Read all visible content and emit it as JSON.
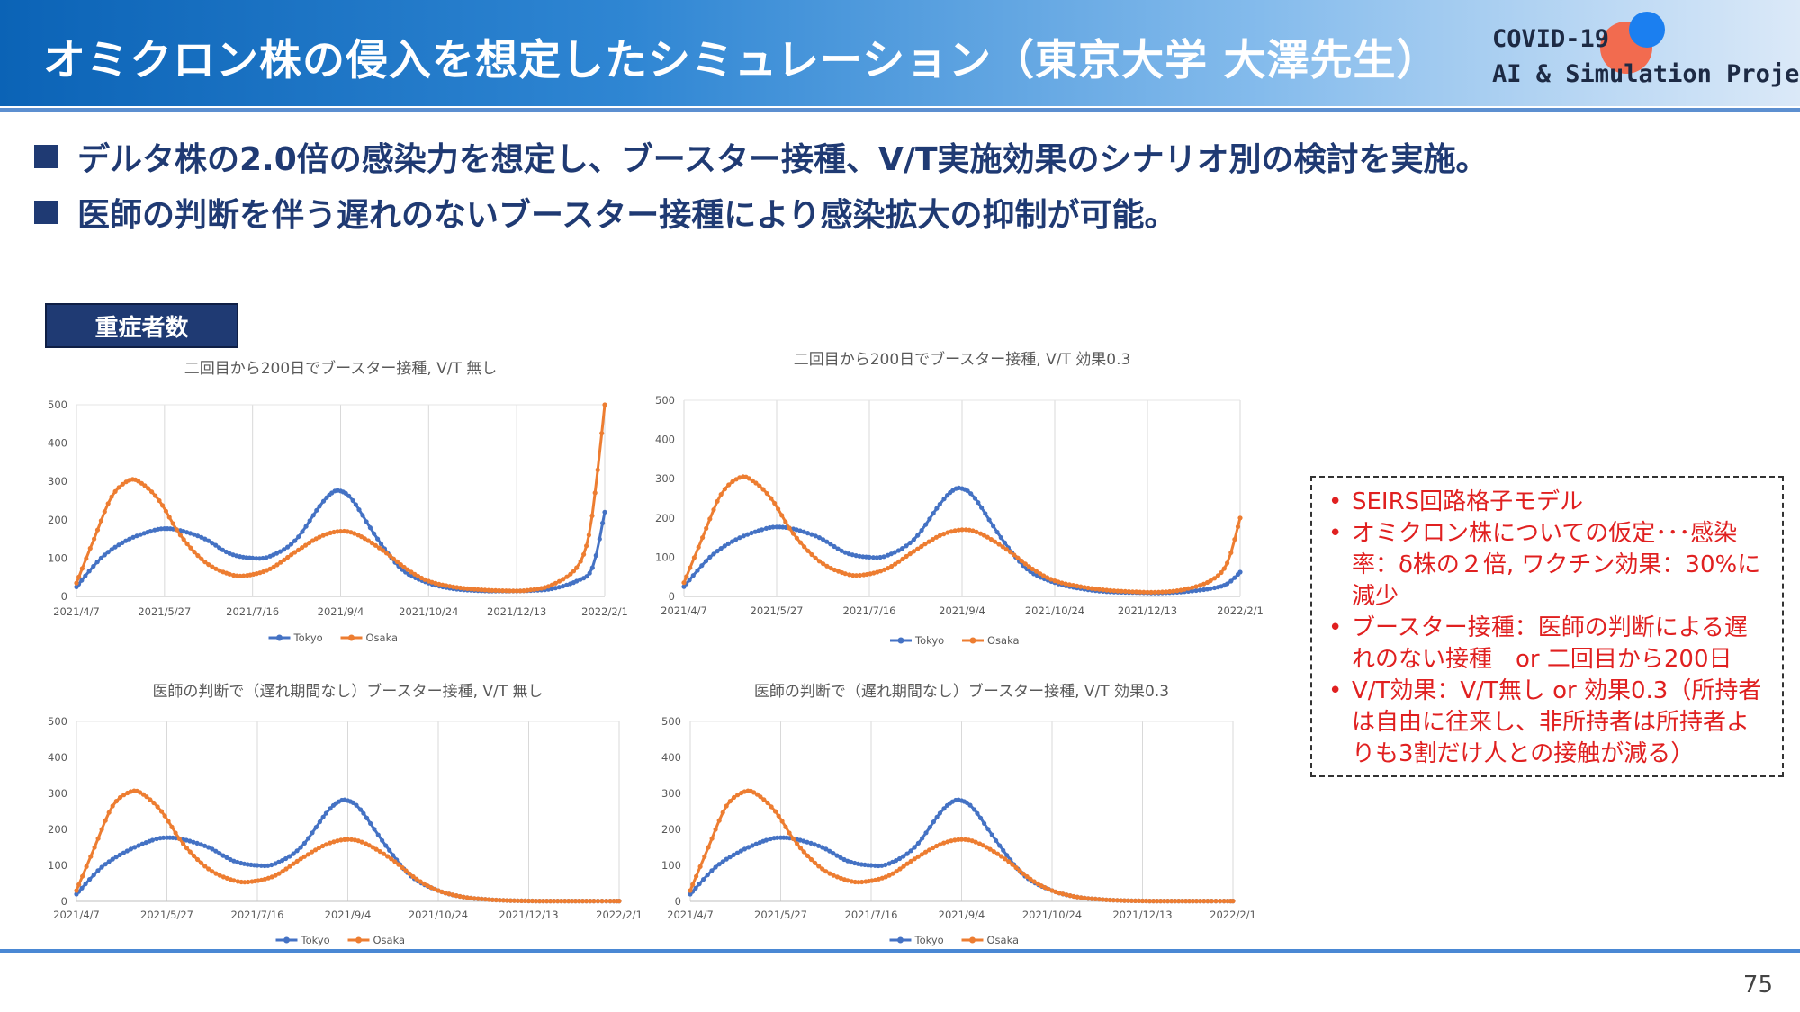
{
  "header": {
    "title": "オミクロン株の侵入を想定したシミュレーション（東京大学 大澤先生）",
    "logo_line1": "COVID-19",
    "logo_line2": "AI & Simulation Project"
  },
  "bullets": [
    "デルタ株の2.0倍の感染力を想定し、ブースター接種、V/T実施効果のシナリオ別の検討を実施。",
    "医師の判断を伴う遅れのないブースター接種により感染拡大の抑制が可能。"
  ],
  "section_tag": "重症者数",
  "notes": [
    "SEIRS回路格子モデル",
    "オミクロン株についての仮定･･･感染率：δ株の２倍, ワクチン効果：30%に減少",
    "ブースター接種：医師の判断による遅れのない接種　or 二回目から200日",
    "V/T効果：V/T無し or 効果0.3（所持者は自由に往来し、非所持者は所持者よりも3割だけ人との接触が減る）"
  ],
  "page_number": "75",
  "colors": {
    "tokyo": "#4472c4",
    "osaka": "#ed7d31",
    "navy": "#1f3a73",
    "note_red": "#e02020"
  },
  "chart_data": [
    {
      "type": "line",
      "title": "二回目から200日でブースター接種, V/T 無し",
      "x_ticks": [
        "2021/4/7",
        "2021/5/27",
        "2021/7/16",
        "2021/9/4",
        "2021/10/24",
        "2021/12/13",
        "2022/2/1"
      ],
      "x_range": [
        "2021-04-07",
        "2022-02-01"
      ],
      "ylim": [
        0,
        500
      ],
      "y_ticks": [
        "0",
        "100",
        "200",
        "300",
        "400",
        "500"
      ],
      "grid": "vertical",
      "legend_position": "bottom",
      "series": [
        {
          "name": "Tokyo",
          "points": [
            [
              "2021-04-07",
              25
            ],
            [
              "2021-04-21",
              100
            ],
            [
              "2021-05-05",
              145
            ],
            [
              "2021-05-19",
              170
            ],
            [
              "2021-05-27",
              177
            ],
            [
              "2021-06-05",
              172
            ],
            [
              "2021-06-19",
              150
            ],
            [
              "2021-07-03",
              112
            ],
            [
              "2021-07-16",
              100
            ],
            [
              "2021-07-26",
              105
            ],
            [
              "2021-08-09",
              145
            ],
            [
              "2021-08-23",
              235
            ],
            [
              "2021-08-30",
              270
            ],
            [
              "2021-09-04",
              275
            ],
            [
              "2021-09-11",
              250
            ],
            [
              "2021-09-25",
              150
            ],
            [
              "2021-10-09",
              70
            ],
            [
              "2021-10-24",
              35
            ],
            [
              "2021-11-07",
              20
            ],
            [
              "2021-11-21",
              15
            ],
            [
              "2021-12-05",
              14
            ],
            [
              "2021-12-19",
              15
            ],
            [
              "2022-01-02",
              20
            ],
            [
              "2022-01-16",
              40
            ],
            [
              "2022-01-25",
              75
            ],
            [
              "2022-02-01",
              220
            ]
          ]
        },
        {
          "name": "Osaka",
          "points": [
            [
              "2021-04-07",
              35
            ],
            [
              "2021-04-17",
              150
            ],
            [
              "2021-04-27",
              260
            ],
            [
              "2021-05-07",
              303
            ],
            [
              "2021-05-14",
              295
            ],
            [
              "2021-05-24",
              250
            ],
            [
              "2021-06-05",
              160
            ],
            [
              "2021-06-19",
              90
            ],
            [
              "2021-07-03",
              58
            ],
            [
              "2021-07-13",
              55
            ],
            [
              "2021-07-26",
              72
            ],
            [
              "2021-08-09",
              115
            ],
            [
              "2021-08-23",
              155
            ],
            [
              "2021-09-04",
              170
            ],
            [
              "2021-09-14",
              160
            ],
            [
              "2021-09-28",
              120
            ],
            [
              "2021-10-12",
              70
            ],
            [
              "2021-10-24",
              40
            ],
            [
              "2021-11-07",
              25
            ],
            [
              "2021-11-21",
              18
            ],
            [
              "2021-12-05",
              15
            ],
            [
              "2021-12-19",
              16
            ],
            [
              "2022-01-02",
              30
            ],
            [
              "2022-01-16",
              75
            ],
            [
              "2022-01-23",
              160
            ],
            [
              "2022-01-28",
              330
            ],
            [
              "2022-02-01",
              500
            ]
          ]
        }
      ]
    },
    {
      "type": "line",
      "title": "二回目から200日でブースター接種, V/T 効果0.3",
      "x_ticks": [
        "2021/4/7",
        "2021/5/27",
        "2021/7/16",
        "2021/9/4",
        "2021/10/24",
        "2021/12/13",
        "2022/2/1"
      ],
      "x_range": [
        "2021-04-07",
        "2022-02-01"
      ],
      "ylim": [
        0,
        500
      ],
      "y_ticks": [
        "0",
        "100",
        "200",
        "300",
        "400",
        "500"
      ],
      "grid": "vertical",
      "legend_position": "bottom",
      "series": [
        {
          "name": "Tokyo",
          "points": [
            [
              "2021-04-07",
              25
            ],
            [
              "2021-04-21",
              100
            ],
            [
              "2021-05-05",
              145
            ],
            [
              "2021-05-19",
              170
            ],
            [
              "2021-05-27",
              177
            ],
            [
              "2021-06-05",
              172
            ],
            [
              "2021-06-19",
              150
            ],
            [
              "2021-07-03",
              112
            ],
            [
              "2021-07-16",
              100
            ],
            [
              "2021-07-26",
              105
            ],
            [
              "2021-08-09",
              145
            ],
            [
              "2021-08-23",
              235
            ],
            [
              "2021-08-30",
              270
            ],
            [
              "2021-09-04",
              275
            ],
            [
              "2021-09-11",
              250
            ],
            [
              "2021-09-25",
              150
            ],
            [
              "2021-10-09",
              70
            ],
            [
              "2021-10-24",
              35
            ],
            [
              "2021-11-07",
              20
            ],
            [
              "2021-11-21",
              12
            ],
            [
              "2021-12-05",
              10
            ],
            [
              "2021-12-19",
              9
            ],
            [
              "2022-01-02",
              12
            ],
            [
              "2022-01-16",
              20
            ],
            [
              "2022-01-25",
              32
            ],
            [
              "2022-02-01",
              62
            ]
          ]
        },
        {
          "name": "Osaka",
          "points": [
            [
              "2021-04-07",
              35
            ],
            [
              "2021-04-17",
              150
            ],
            [
              "2021-04-27",
              260
            ],
            [
              "2021-05-07",
              303
            ],
            [
              "2021-05-14",
              295
            ],
            [
              "2021-05-24",
              250
            ],
            [
              "2021-06-05",
              160
            ],
            [
              "2021-06-19",
              90
            ],
            [
              "2021-07-03",
              58
            ],
            [
              "2021-07-13",
              55
            ],
            [
              "2021-07-26",
              72
            ],
            [
              "2021-08-09",
              115
            ],
            [
              "2021-08-23",
              155
            ],
            [
              "2021-09-04",
              170
            ],
            [
              "2021-09-14",
              160
            ],
            [
              "2021-09-28",
              120
            ],
            [
              "2021-10-12",
              70
            ],
            [
              "2021-10-24",
              40
            ],
            [
              "2021-11-07",
              25
            ],
            [
              "2021-11-21",
              16
            ],
            [
              "2021-12-05",
              12
            ],
            [
              "2021-12-19",
              11
            ],
            [
              "2022-01-02",
              18
            ],
            [
              "2022-01-16",
              40
            ],
            [
              "2022-01-25",
              85
            ],
            [
              "2022-02-01",
              200
            ]
          ]
        }
      ]
    },
    {
      "type": "line",
      "title": "医師の判断で（遅れ期間なし）ブースター接種, V/T 無し",
      "x_ticks": [
        "2021/4/7",
        "2021/5/27",
        "2021/7/16",
        "2021/9/4",
        "2021/10/24",
        "2021/12/13",
        "2022/2/1"
      ],
      "x_range": [
        "2021-04-07",
        "2022-02-01"
      ],
      "ylim": [
        0,
        500
      ],
      "y_ticks": [
        "0",
        "100",
        "200",
        "300",
        "400",
        "500"
      ],
      "grid": "vertical",
      "legend_position": "bottom",
      "series": [
        {
          "name": "Tokyo",
          "points": [
            [
              "2021-04-07",
              20
            ],
            [
              "2021-04-21",
              95
            ],
            [
              "2021-05-05",
              140
            ],
            [
              "2021-05-19",
              170
            ],
            [
              "2021-05-27",
              177
            ],
            [
              "2021-06-05",
              172
            ],
            [
              "2021-06-19",
              150
            ],
            [
              "2021-07-03",
              112
            ],
            [
              "2021-07-16",
              100
            ],
            [
              "2021-07-26",
              105
            ],
            [
              "2021-08-09",
              150
            ],
            [
              "2021-08-23",
              245
            ],
            [
              "2021-08-30",
              277
            ],
            [
              "2021-09-04",
              280
            ],
            [
              "2021-09-11",
              255
            ],
            [
              "2021-09-25",
              155
            ],
            [
              "2021-10-09",
              70
            ],
            [
              "2021-10-24",
              30
            ],
            [
              "2021-11-07",
              12
            ],
            [
              "2021-11-21",
              5
            ],
            [
              "2021-12-05",
              2
            ],
            [
              "2021-12-19",
              1
            ],
            [
              "2022-01-02",
              1
            ],
            [
              "2022-01-16",
              1
            ],
            [
              "2022-02-01",
              1
            ]
          ]
        },
        {
          "name": "Osaka",
          "points": [
            [
              "2021-04-07",
              30
            ],
            [
              "2021-04-17",
              150
            ],
            [
              "2021-04-27",
              265
            ],
            [
              "2021-05-07",
              305
            ],
            [
              "2021-05-14",
              297
            ],
            [
              "2021-05-24",
              250
            ],
            [
              "2021-06-05",
              160
            ],
            [
              "2021-06-19",
              90
            ],
            [
              "2021-07-03",
              58
            ],
            [
              "2021-07-13",
              55
            ],
            [
              "2021-07-26",
              72
            ],
            [
              "2021-08-09",
              118
            ],
            [
              "2021-08-23",
              158
            ],
            [
              "2021-09-04",
              172
            ],
            [
              "2021-09-14",
              160
            ],
            [
              "2021-09-28",
              118
            ],
            [
              "2021-10-12",
              62
            ],
            [
              "2021-10-24",
              30
            ],
            [
              "2021-11-07",
              12
            ],
            [
              "2021-11-21",
              5
            ],
            [
              "2021-12-05",
              2
            ],
            [
              "2021-12-19",
              1
            ],
            [
              "2022-01-02",
              1
            ],
            [
              "2022-01-16",
              1
            ],
            [
              "2022-02-01",
              1
            ]
          ]
        }
      ]
    },
    {
      "type": "line",
      "title": "医師の判断で（遅れ期間なし）ブースター接種, V/T 効果0.3",
      "x_ticks": [
        "2021/4/7",
        "2021/5/27",
        "2021/7/16",
        "2021/9/4",
        "2021/10/24",
        "2021/12/13",
        "2022/2/1"
      ],
      "x_range": [
        "2021-04-07",
        "2022-02-01"
      ],
      "ylim": [
        0,
        500
      ],
      "y_ticks": [
        "0",
        "100",
        "200",
        "300",
        "400",
        "500"
      ],
      "grid": "vertical",
      "legend_position": "bottom",
      "series": [
        {
          "name": "Tokyo",
          "points": [
            [
              "2021-04-07",
              20
            ],
            [
              "2021-04-21",
              95
            ],
            [
              "2021-05-05",
              140
            ],
            [
              "2021-05-19",
              170
            ],
            [
              "2021-05-27",
              177
            ],
            [
              "2021-06-05",
              172
            ],
            [
              "2021-06-19",
              150
            ],
            [
              "2021-07-03",
              112
            ],
            [
              "2021-07-16",
              100
            ],
            [
              "2021-07-26",
              105
            ],
            [
              "2021-08-09",
              150
            ],
            [
              "2021-08-23",
              245
            ],
            [
              "2021-08-30",
              277
            ],
            [
              "2021-09-04",
              280
            ],
            [
              "2021-09-11",
              255
            ],
            [
              "2021-09-25",
              155
            ],
            [
              "2021-10-09",
              70
            ],
            [
              "2021-10-24",
              30
            ],
            [
              "2021-11-07",
              12
            ],
            [
              "2021-11-21",
              5
            ],
            [
              "2021-12-05",
              2
            ],
            [
              "2021-12-19",
              1
            ],
            [
              "2022-01-02",
              1
            ],
            [
              "2022-01-16",
              1
            ],
            [
              "2022-02-01",
              1
            ]
          ]
        },
        {
          "name": "Osaka",
          "points": [
            [
              "2021-04-07",
              30
            ],
            [
              "2021-04-17",
              150
            ],
            [
              "2021-04-27",
              265
            ],
            [
              "2021-05-07",
              305
            ],
            [
              "2021-05-14",
              297
            ],
            [
              "2021-05-24",
              250
            ],
            [
              "2021-06-05",
              160
            ],
            [
              "2021-06-19",
              90
            ],
            [
              "2021-07-03",
              58
            ],
            [
              "2021-07-13",
              55
            ],
            [
              "2021-07-26",
              72
            ],
            [
              "2021-08-09",
              118
            ],
            [
              "2021-08-23",
              158
            ],
            [
              "2021-09-04",
              172
            ],
            [
              "2021-09-14",
              160
            ],
            [
              "2021-09-28",
              118
            ],
            [
              "2021-10-12",
              62
            ],
            [
              "2021-10-24",
              30
            ],
            [
              "2021-11-07",
              12
            ],
            [
              "2021-11-21",
              5
            ],
            [
              "2021-12-05",
              2
            ],
            [
              "2021-12-19",
              1
            ],
            [
              "2022-01-02",
              1
            ],
            [
              "2022-01-16",
              1
            ],
            [
              "2022-02-01",
              1
            ]
          ]
        }
      ]
    }
  ]
}
